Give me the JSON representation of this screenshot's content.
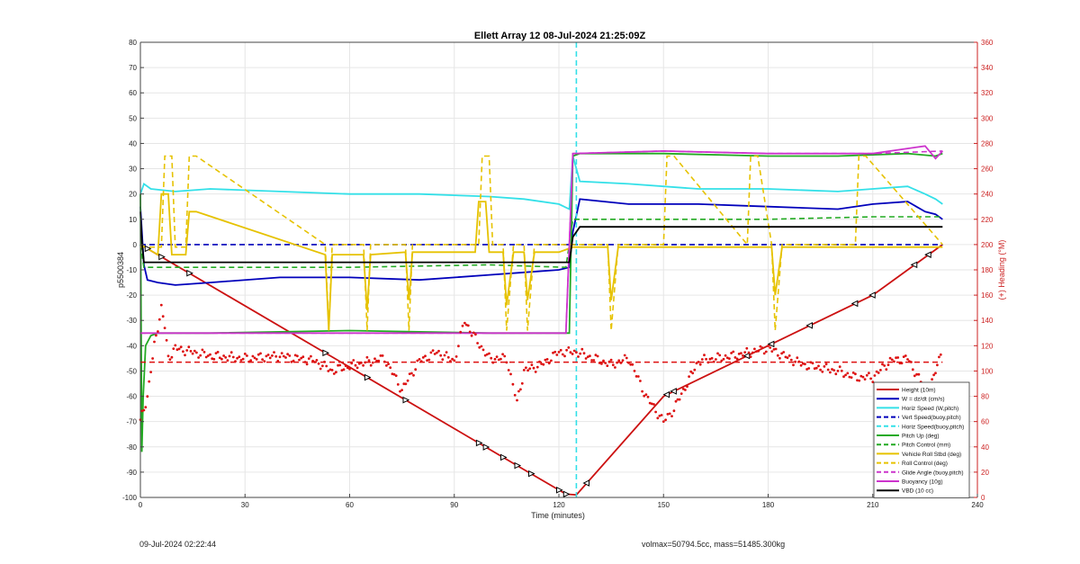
{
  "chart_data": {
    "type": "line",
    "title": "Ellett Array 12 08-Jul-2024 21:25:09Z",
    "xlabel": "Time (minutes)",
    "ylabel_left": "p5500384",
    "ylabel_right": "(+) Heading (°M)",
    "xlim": [
      0,
      240
    ],
    "ylim_left": [
      -100,
      80
    ],
    "ylim_right": [
      0,
      360
    ],
    "x_ticks": [
      0,
      30,
      60,
      90,
      120,
      150,
      180,
      210,
      240
    ],
    "y_ticks_left": [
      -100,
      -90,
      -80,
      -70,
      -60,
      -50,
      -40,
      -30,
      -20,
      -10,
      0,
      10,
      20,
      30,
      40,
      50,
      60,
      70,
      80
    ],
    "y_ticks_right": [
      0,
      20,
      40,
      60,
      80,
      100,
      120,
      140,
      160,
      180,
      200,
      220,
      240,
      260,
      280,
      300,
      320,
      340,
      360
    ],
    "grid": true,
    "legend_position": "bottom-right",
    "apogee_time": 125,
    "colors": {
      "height": "#cc1111",
      "w": "#0000bb",
      "horiz_speed": "#33e0e8",
      "pitch": "#22aa22",
      "roll": "#e6c200",
      "buoyancy": "#cc33cc",
      "vbd": "#000000",
      "heading": "#dd1111",
      "right_axis": "#cc2222"
    },
    "series": [
      {
        "name": "Height (10m)",
        "color": "#cc1111",
        "style": "solid",
        "x": [
          0,
          60,
          90,
          110,
          122,
          125,
          150,
          180,
          210,
          230
        ],
        "y": [
          0,
          -48.5,
          -72.8,
          -89,
          -98.7,
          -99,
          -60,
          -40,
          -20,
          0
        ]
      },
      {
        "name": "W = dz/dt (cm/s)",
        "color": "#0000bb",
        "style": "solid",
        "x": [
          0,
          1,
          2,
          5,
          10,
          20,
          40,
          60,
          80,
          100,
          110,
          120,
          123,
          124,
          126,
          140,
          160,
          180,
          200,
          210,
          220,
          225,
          228,
          230
        ],
        "y": [
          15,
          -8,
          -14,
          -15,
          -16,
          -15,
          -13,
          -13,
          -14,
          -12,
          -11,
          -10,
          -9,
          5,
          18,
          16,
          16,
          15,
          14,
          16,
          17,
          13,
          12,
          10
        ]
      },
      {
        "name": "Horiz Speed (W,pitch)",
        "color": "#33e0e8",
        "style": "solid",
        "x": [
          0,
          1,
          3,
          10,
          20,
          40,
          60,
          80,
          100,
          110,
          120,
          123,
          124,
          126,
          140,
          160,
          180,
          200,
          210,
          220,
          225,
          228,
          230
        ],
        "y": [
          20,
          24,
          22,
          21,
          22,
          21,
          20,
          20,
          19,
          18,
          16,
          14,
          35,
          25,
          24,
          22,
          22,
          21,
          22,
          23,
          20,
          18,
          16
        ]
      },
      {
        "name": "Vert Speed(buoy,pitch)",
        "color": "#0000bb",
        "style": "dashed",
        "x": [
          0,
          125,
          230
        ],
        "y": [
          0,
          0,
          0
        ]
      },
      {
        "name": "Horiz Speed(buoy,pitch)",
        "color": "#33e0e8",
        "style": "dashed",
        "x": [
          125,
          125
        ],
        "y": [
          -100,
          80
        ]
      },
      {
        "name": "Pitch Up (deg)",
        "color": "#22aa22",
        "style": "solid",
        "x": [
          0,
          0.4,
          0.8,
          1.5,
          3,
          5,
          10,
          20,
          60,
          100,
          120,
          123,
          124,
          126,
          150,
          180,
          200,
          220,
          228,
          230
        ],
        "y": [
          20,
          -82,
          -60,
          -40,
          -36,
          -35,
          -35,
          -35,
          -34,
          -35,
          -35,
          -35,
          35,
          36,
          36,
          35,
          35,
          36,
          35,
          36
        ]
      },
      {
        "name": "Pitch Control (mm)",
        "color": "#22aa22",
        "style": "dashed",
        "x": [
          0,
          1,
          60,
          100,
          122,
          124,
          140,
          180,
          210,
          230
        ],
        "y": [
          0,
          -9,
          -9,
          -8,
          -9,
          10,
          10,
          10,
          11,
          11
        ]
      },
      {
        "name": "Vehicle Roll Stbd (deg)",
        "color": "#e6c200",
        "style": "solid",
        "x": [
          0,
          5,
          6,
          8,
          9,
          13,
          14,
          16,
          53,
          54,
          55,
          64,
          65,
          66,
          76,
          77,
          78,
          96,
          97,
          99,
          100,
          104,
          105,
          107,
          110,
          111,
          113,
          120,
          124,
          134,
          135,
          137,
          181,
          182,
          184,
          230
        ],
        "y": [
          0,
          -4,
          20,
          20,
          -4,
          -4,
          13,
          13,
          -4,
          -34,
          -4,
          -4,
          -26,
          -4,
          -3,
          -22,
          -3,
          -3,
          17,
          17,
          -3,
          -3,
          -24,
          -3,
          -3,
          -22,
          -3,
          -3,
          -1,
          -1,
          -22,
          -1,
          -1,
          -20,
          -1,
          -1
        ]
      },
      {
        "name": "Roll Control (deg)",
        "color": "#e6c200",
        "style": "dashed",
        "x": [
          0,
          6,
          7,
          9,
          10,
          13,
          14,
          16,
          53,
          54,
          55,
          64,
          65,
          66,
          76,
          77,
          78,
          97,
          98,
          100,
          101,
          104,
          105,
          107,
          110,
          111,
          113,
          120,
          124,
          134,
          135,
          137,
          150,
          151,
          153,
          174,
          175,
          177,
          181,
          182,
          184,
          205,
          206,
          208,
          230
        ],
        "y": [
          -1,
          -1,
          35,
          35,
          -1,
          -1,
          35,
          35,
          0,
          -34,
          0,
          0,
          -34,
          0,
          0,
          -34,
          0,
          0,
          35,
          35,
          0,
          0,
          -34,
          0,
          0,
          -34,
          0,
          0,
          0,
          0,
          -34,
          0,
          0,
          35,
          35,
          0,
          35,
          35,
          0,
          -34,
          0,
          0,
          35,
          35,
          0
        ]
      },
      {
        "name": "Glide Angle (buoy,pitch)",
        "color": "#cc33cc",
        "style": "dashed",
        "x": [
          0,
          5,
          60,
          100,
          122,
          124,
          150,
          180,
          210,
          230
        ],
        "y": [
          -35,
          -35,
          -35,
          -35,
          -35,
          36,
          37,
          36,
          36,
          37
        ]
      },
      {
        "name": "Buoyancy (10g)",
        "color": "#cc33cc",
        "style": "solid",
        "x": [
          0,
          5,
          60,
          100,
          122,
          124,
          150,
          180,
          210,
          225,
          228,
          230
        ],
        "y": [
          -35,
          -35,
          -35,
          -35,
          -35,
          36,
          37,
          36,
          36,
          39,
          34,
          37
        ]
      },
      {
        "name": "VBD (10 cc)",
        "color": "#000000",
        "style": "solid",
        "x": [
          0,
          0.5,
          1,
          122,
          123,
          124,
          126,
          230
        ],
        "y": [
          13,
          0,
          -7,
          -7,
          -7,
          3,
          7,
          7
        ]
      }
    ],
    "heading": {
      "name": "Heading",
      "axis": "right",
      "mean": 107,
      "x": [
        0,
        2,
        4,
        6,
        7,
        8,
        10,
        15,
        20,
        30,
        40,
        50,
        55,
        60,
        70,
        75,
        80,
        85,
        90,
        93,
        95,
        100,
        105,
        108,
        110,
        115,
        120,
        125,
        130,
        135,
        140,
        145,
        150,
        153,
        160,
        165,
        170,
        175,
        180,
        190,
        200,
        205,
        210,
        215,
        220,
        222,
        225,
        227,
        229,
        230
      ],
      "y": [
        60,
        80,
        120,
        150,
        135,
        110,
        118,
        115,
        112,
        110,
        112,
        108,
        100,
        104,
        110,
        85,
        108,
        115,
        108,
        140,
        130,
        110,
        110,
        75,
        100,
        105,
        115,
        115,
        110,
        105,
        110,
        80,
        60,
        70,
        108,
        110,
        112,
        115,
        118,
        105,
        100,
        95,
        95,
        108,
        110,
        100,
        85,
        90,
        110,
        120
      ]
    }
  },
  "footer": {
    "left_text": "09-Jul-2024 02:22:44",
    "right_text": "volmax=50794.5cc, mass=51485.300kg"
  }
}
